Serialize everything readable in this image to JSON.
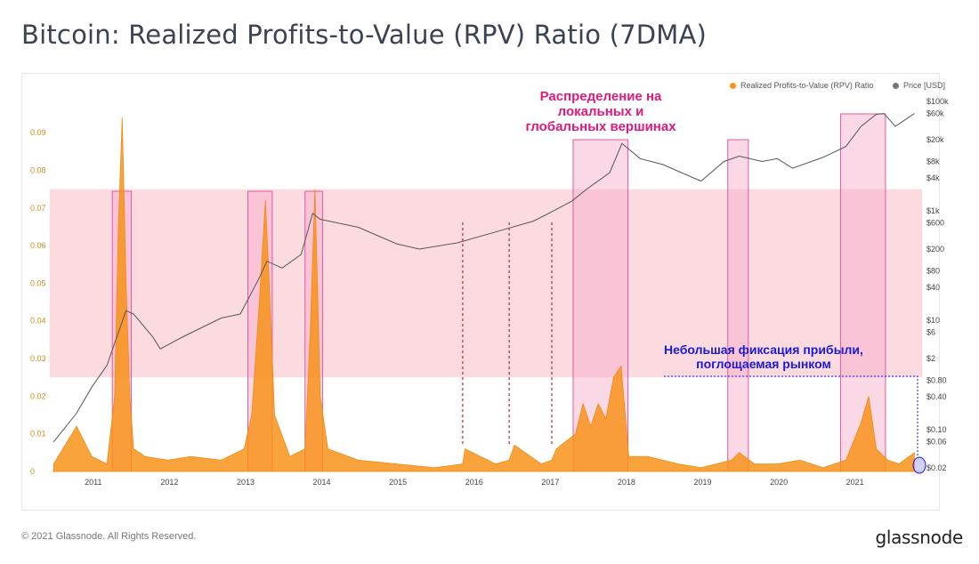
{
  "title": "Bitcoin: Realized Profits-to-Value (RPV) Ratio (7DMA)",
  "footer": {
    "copyright": "© 2021 Glassnode. All Rights Reserved.",
    "logo": "glassnode"
  },
  "colors": {
    "rpv": "#f7931a",
    "price": "#555555",
    "band": "#f9cfd5",
    "highlight": "#f7a8c8",
    "guide": "#cc1f3c",
    "annot_pink": "#e0197d",
    "annot_blue": "#1a1ad6"
  },
  "legend": {
    "rpv": "Realized Profits-to-Value (RPV) Ratio",
    "price": "Price [USD]"
  },
  "annotations": {
    "peaks": [
      "Распределение на",
      "локальных и",
      "глобальных вершинах"
    ],
    "small": [
      "Небольшая фиксация прибыли,",
      "поглощаемая рынком"
    ]
  },
  "chart_data": {
    "type": "line",
    "x_ticks": [
      "2011",
      "2012",
      "2013",
      "2014",
      "2015",
      "2016",
      "2017",
      "2018",
      "2019",
      "2020",
      "2021"
    ],
    "left_axis": {
      "ticks": [
        "0",
        "0.01",
        "0.02",
        "0.03",
        "0.04",
        "0.05",
        "0.06",
        "0.07",
        "0.08",
        "0.09"
      ],
      "ylim": [
        0,
        0.095
      ]
    },
    "right_axis_upper": {
      "ticks": [
        "$100k",
        "$60k",
        "$20k",
        "$8k",
        "$4k",
        "$1k",
        "$600",
        "$200",
        "$80",
        "$40",
        "$10",
        "$6",
        "$2"
      ],
      "scale": "log"
    },
    "right_axis_lower": {
      "ticks": [
        "$0.80",
        "$0.40",
        "$0.10",
        "$0.06",
        "$0.02"
      ]
    },
    "band": {
      "y_from": 0.025,
      "y_to": 0.075
    },
    "highlight_windows": [
      {
        "from": 2011.27,
        "to": 2011.52
      },
      {
        "from": 2013.05,
        "to": 2013.37
      },
      {
        "from": 2013.8,
        "to": 2014.03
      },
      {
        "from": 2017.32,
        "to": 2018.04
      },
      {
        "from": 2019.35,
        "to": 2019.62
      },
      {
        "from": 2020.83,
        "to": 2021.42
      }
    ],
    "guide_lines_x": [
      2015.87,
      2016.48,
      2017.04
    ],
    "rpv_series": {
      "name": "Realized Profits-to-Value (RPV) Ratio",
      "x": [
        2010.5,
        2010.8,
        2011.0,
        2011.2,
        2011.3,
        2011.35,
        2011.4,
        2011.45,
        2011.5,
        2011.55,
        2011.7,
        2012.0,
        2012.3,
        2012.7,
        2013.0,
        2013.1,
        2013.2,
        2013.28,
        2013.33,
        2013.4,
        2013.6,
        2013.8,
        2013.87,
        2013.93,
        2014.0,
        2014.1,
        2014.5,
        2015.0,
        2015.5,
        2015.87,
        2015.9,
        2016.3,
        2016.48,
        2016.55,
        2016.9,
        2017.04,
        2017.1,
        2017.35,
        2017.45,
        2017.55,
        2017.65,
        2017.75,
        2017.85,
        2017.95,
        2018.05,
        2018.3,
        2018.7,
        2019.0,
        2019.4,
        2019.5,
        2019.7,
        2020.0,
        2020.3,
        2020.6,
        2020.9,
        2021.0,
        2021.1,
        2021.2,
        2021.3,
        2021.45,
        2021.6,
        2021.8
      ],
      "y": [
        0.002,
        0.012,
        0.004,
        0.002,
        0.02,
        0.065,
        0.094,
        0.05,
        0.02,
        0.006,
        0.004,
        0.003,
        0.004,
        0.003,
        0.006,
        0.015,
        0.045,
        0.072,
        0.05,
        0.015,
        0.004,
        0.006,
        0.038,
        0.075,
        0.02,
        0.006,
        0.003,
        0.002,
        0.001,
        0.002,
        0.006,
        0.002,
        0.003,
        0.007,
        0.002,
        0.003,
        0.006,
        0.01,
        0.018,
        0.012,
        0.018,
        0.014,
        0.025,
        0.028,
        0.004,
        0.004,
        0.002,
        0.001,
        0.003,
        0.005,
        0.002,
        0.002,
        0.003,
        0.001,
        0.003,
        0.008,
        0.013,
        0.02,
        0.006,
        0.003,
        0.002,
        0.005
      ]
    },
    "price_series": {
      "name": "Price [USD]",
      "x": [
        2010.5,
        2010.8,
        2011.0,
        2011.2,
        2011.45,
        2011.55,
        2011.8,
        2011.9,
        2012.2,
        2012.7,
        2012.95,
        2013.2,
        2013.3,
        2013.5,
        2013.75,
        2013.9,
        2014.0,
        2014.5,
        2015.0,
        2015.3,
        2015.8,
        2016.4,
        2016.8,
        2017.0,
        2017.3,
        2017.5,
        2017.8,
        2017.96,
        2018.2,
        2018.5,
        2018.9,
        2019.0,
        2019.3,
        2019.5,
        2019.8,
        2020.0,
        2020.2,
        2020.6,
        2020.9,
        2021.1,
        2021.3,
        2021.4,
        2021.55,
        2021.8
      ],
      "y": [
        0.06,
        0.2,
        0.6,
        1.5,
        15,
        13,
        5,
        3,
        5,
        11,
        13,
        60,
        120,
        90,
        160,
        900,
        700,
        500,
        250,
        200,
        260,
        450,
        650,
        900,
        1500,
        2500,
        5000,
        17000,
        9000,
        7000,
        4000,
        3500,
        8000,
        10000,
        8000,
        9000,
        6000,
        9500,
        15000,
        35000,
        58000,
        60000,
        35000,
        60000
      ]
    }
  }
}
